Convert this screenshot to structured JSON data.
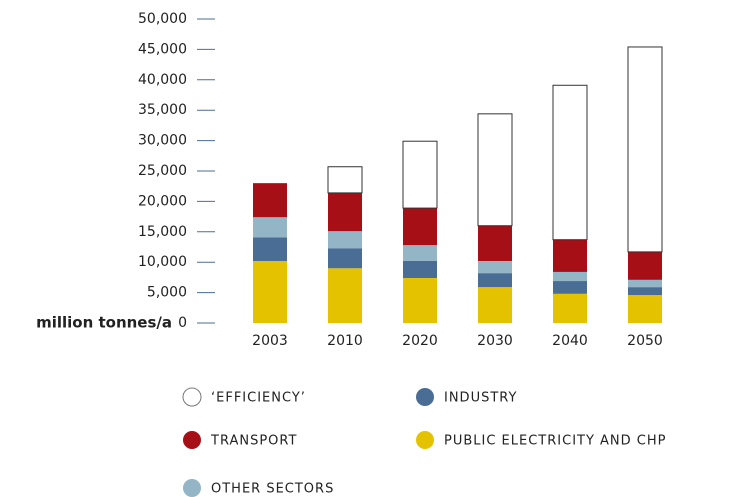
{
  "chart_data": {
    "type": "stacked_bar",
    "y_label": "million tonnes/a",
    "categories": [
      "2003",
      "2010",
      "2020",
      "2030",
      "2040",
      "2050"
    ],
    "series": [
      {
        "name": "PUBLIC ELECTRICITY AND CHP",
        "color": "#e5c200",
        "values": [
          10200,
          9000,
          7400,
          5900,
          4800,
          4600
        ]
      },
      {
        "name": "INDUSTRY",
        "color": "#4a6d96",
        "values": [
          3900,
          3300,
          2800,
          2300,
          2100,
          1300
        ]
      },
      {
        "name": "OTHER SECTORS",
        "color": "#93b5c6",
        "values": [
          3300,
          2800,
          2600,
          2000,
          1500,
          1200
        ]
      },
      {
        "name": "TRANSPORT",
        "color": "#a50f15",
        "values": [
          5600,
          6300,
          6100,
          5800,
          5300,
          4600
        ]
      },
      {
        "name": "‘EFFICIENCY’",
        "color": "#ffffff",
        "values": [
          0,
          4300,
          11000,
          18400,
          25400,
          33700
        ]
      }
    ],
    "ylim": [
      0,
      50000
    ],
    "yticks": [
      0,
      {
        "value": 5000,
        "label": "5,000"
      },
      {
        "value": 10000,
        "label": "10,000"
      },
      {
        "value": 15000,
        "label": "15,000"
      },
      {
        "value": 20000,
        "label": "20,000"
      },
      {
        "value": 25000,
        "label": "25,000"
      },
      {
        "value": 30000,
        "label": "30,000"
      },
      {
        "value": 35000,
        "label": "35,000"
      },
      {
        "value": 40000,
        "label": "40,000"
      },
      {
        "value": 45000,
        "label": "45,000"
      },
      {
        "value": 50000,
        "label": "50,000"
      }
    ]
  }
}
